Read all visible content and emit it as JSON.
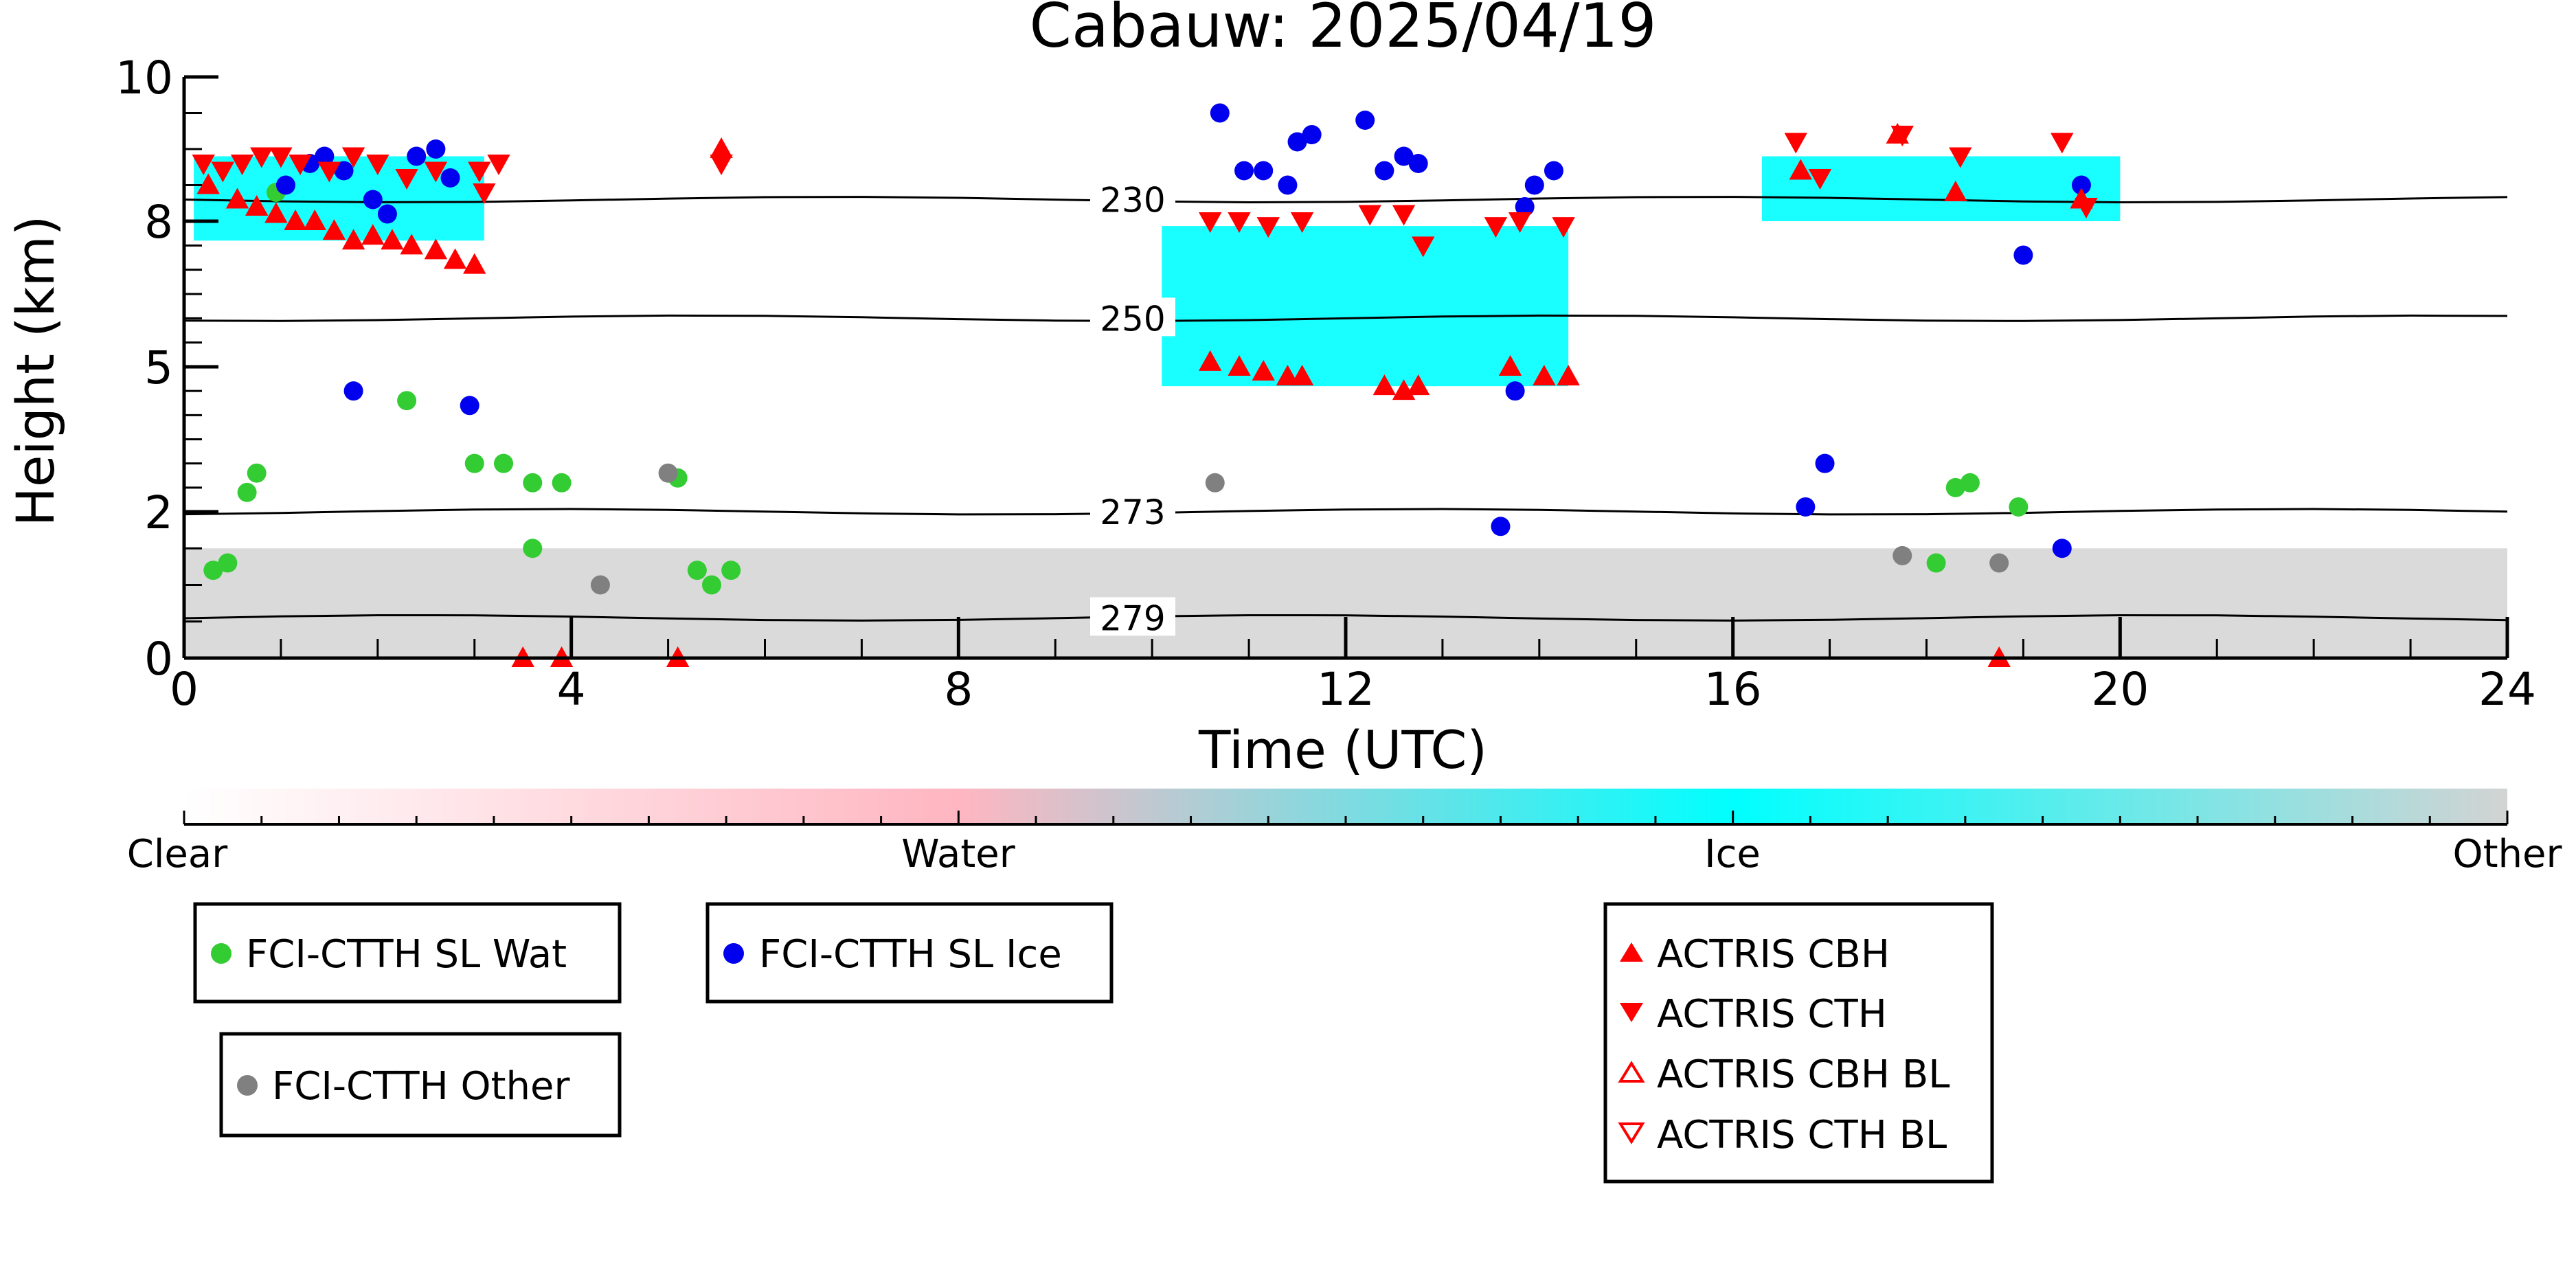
{
  "chart_data": {
    "type": "scatter",
    "title": "Cabauw: 2025/04/19",
    "xlabel": "Time (UTC)",
    "ylabel": "Height (km)",
    "xlim": [
      0,
      24
    ],
    "ylim": [
      0,
      10
    ],
    "x_ticks": [
      0,
      4,
      8,
      12,
      16,
      20,
      24
    ],
    "y_ticks": [
      0,
      2,
      5,
      8,
      10
    ],
    "y_tick_labels": [
      "0",
      "2",
      "5",
      "8",
      "10"
    ],
    "y_scale_note": "nonlinear height axis (0,2,5,8,10 labeled)",
    "colorbar": {
      "labels": [
        "Clear",
        "Water",
        "Ice",
        "Other"
      ],
      "colors": [
        "#ffffff",
        "#ffb6c1",
        "#00ffff",
        "#d3d3d3"
      ]
    },
    "contours": [
      {
        "label": "230",
        "y_km": 8.3
      },
      {
        "label": "250",
        "y_km": 6.0
      },
      {
        "label": "273",
        "y_km": 2.0
      },
      {
        "label": "279",
        "y_km": 0.55
      }
    ],
    "cloud_regions": [
      {
        "class": "Ice",
        "x": [
          0.1,
          3.1
        ],
        "y": [
          7.6,
          8.9
        ]
      },
      {
        "class": "Ice",
        "x": [
          10.1,
          14.3
        ],
        "y": [
          4.6,
          7.9
        ]
      },
      {
        "class": "Ice",
        "x": [
          16.3,
          20.0
        ],
        "y": [
          8.0,
          8.9
        ]
      },
      {
        "class": "Other",
        "x": [
          0.0,
          24.0
        ],
        "y": [
          0.0,
          1.5
        ]
      }
    ],
    "series": [
      {
        "name": "FCI-CTTH SL Wat",
        "color": "#33cc33",
        "marker": "circle",
        "points": [
          [
            0.3,
            1.2
          ],
          [
            0.45,
            1.3
          ],
          [
            0.65,
            2.4
          ],
          [
            0.75,
            2.8
          ],
          [
            0.95,
            8.4
          ],
          [
            2.3,
            4.3
          ],
          [
            3.0,
            3.0
          ],
          [
            3.3,
            3.0
          ],
          [
            3.6,
            2.6
          ],
          [
            3.9,
            2.6
          ],
          [
            5.1,
            2.7
          ],
          [
            5.3,
            1.2
          ],
          [
            5.45,
            1.0
          ],
          [
            5.65,
            1.2
          ],
          [
            18.1,
            1.3
          ],
          [
            18.3,
            2.5
          ],
          [
            18.45,
            2.6
          ],
          [
            18.95,
            2.1
          ],
          [
            3.6,
            1.5
          ]
        ]
      },
      {
        "name": "FCI-CTTH SL Ice",
        "color": "#0000ee",
        "marker": "circle",
        "points": [
          [
            1.05,
            8.5
          ],
          [
            1.3,
            8.8
          ],
          [
            1.45,
            8.9
          ],
          [
            1.65,
            8.7
          ],
          [
            1.95,
            8.3
          ],
          [
            2.1,
            8.1
          ],
          [
            2.4,
            8.9
          ],
          [
            2.6,
            9.0
          ],
          [
            2.75,
            8.6
          ],
          [
            1.75,
            4.5
          ],
          [
            2.95,
            4.2
          ],
          [
            10.7,
            9.5
          ],
          [
            10.95,
            8.7
          ],
          [
            11.15,
            8.7
          ],
          [
            11.4,
            8.5
          ],
          [
            11.5,
            9.1
          ],
          [
            11.65,
            9.2
          ],
          [
            12.2,
            9.4
          ],
          [
            12.4,
            8.7
          ],
          [
            12.6,
            8.9
          ],
          [
            12.75,
            8.8
          ],
          [
            13.85,
            8.2
          ],
          [
            13.95,
            8.5
          ],
          [
            14.15,
            8.7
          ],
          [
            13.75,
            4.5
          ],
          [
            13.6,
            1.8
          ],
          [
            16.75,
            2.1
          ],
          [
            16.95,
            3.0
          ],
          [
            19.0,
            7.3
          ],
          [
            19.6,
            8.5
          ],
          [
            19.4,
            1.5
          ]
        ]
      },
      {
        "name": "FCI-CTTH Other",
        "color": "#808080",
        "marker": "circle",
        "points": [
          [
            4.3,
            1.0
          ],
          [
            5.0,
            2.8
          ],
          [
            10.65,
            2.6
          ],
          [
            17.75,
            1.4
          ],
          [
            18.75,
            1.3
          ]
        ]
      },
      {
        "name": "ACTRIS CBH",
        "color": "#ff0000",
        "marker": "triangle-up",
        "points": [
          [
            0.25,
            8.5
          ],
          [
            0.55,
            8.3
          ],
          [
            0.75,
            8.2
          ],
          [
            0.95,
            8.1
          ],
          [
            1.15,
            8.0
          ],
          [
            1.35,
            8.0
          ],
          [
            1.55,
            7.8
          ],
          [
            1.75,
            7.6
          ],
          [
            1.95,
            7.7
          ],
          [
            2.15,
            7.6
          ],
          [
            2.35,
            7.5
          ],
          [
            2.6,
            7.4
          ],
          [
            2.8,
            7.2
          ],
          [
            3.0,
            7.1
          ],
          [
            5.55,
            9.0
          ],
          [
            10.6,
            5.1
          ],
          [
            10.9,
            5.0
          ],
          [
            11.15,
            4.9
          ],
          [
            11.4,
            4.8
          ],
          [
            11.55,
            4.8
          ],
          [
            12.4,
            4.6
          ],
          [
            12.6,
            4.5
          ],
          [
            12.75,
            4.6
          ],
          [
            13.7,
            5.0
          ],
          [
            14.05,
            4.8
          ],
          [
            14.3,
            4.8
          ],
          [
            16.7,
            8.7
          ],
          [
            17.7,
            9.2
          ],
          [
            18.3,
            8.4
          ],
          [
            19.6,
            8.3
          ],
          [
            3.5,
            0.0
          ],
          [
            3.9,
            0.0
          ],
          [
            5.1,
            0.0
          ],
          [
            18.75,
            0.0
          ]
        ]
      },
      {
        "name": "ACTRIS CTH",
        "color": "#ff0000",
        "marker": "triangle-down",
        "points": [
          [
            0.2,
            8.8
          ],
          [
            0.4,
            8.7
          ],
          [
            0.6,
            8.8
          ],
          [
            0.8,
            8.9
          ],
          [
            1.0,
            8.9
          ],
          [
            1.2,
            8.8
          ],
          [
            1.5,
            8.7
          ],
          [
            1.75,
            8.9
          ],
          [
            2.0,
            8.8
          ],
          [
            2.3,
            8.6
          ],
          [
            2.6,
            8.7
          ],
          [
            3.05,
            8.7
          ],
          [
            3.25,
            8.8
          ],
          [
            3.1,
            8.4
          ],
          [
            5.55,
            8.8
          ],
          [
            10.6,
            8.0
          ],
          [
            10.9,
            8.0
          ],
          [
            11.2,
            7.9
          ],
          [
            11.55,
            8.0
          ],
          [
            12.25,
            8.1
          ],
          [
            12.6,
            8.1
          ],
          [
            12.8,
            7.5
          ],
          [
            13.55,
            7.9
          ],
          [
            13.8,
            8.0
          ],
          [
            14.25,
            7.9
          ],
          [
            16.65,
            9.1
          ],
          [
            16.9,
            8.6
          ],
          [
            17.75,
            9.2
          ],
          [
            18.35,
            8.9
          ],
          [
            19.4,
            9.1
          ],
          [
            19.65,
            8.2
          ]
        ]
      },
      {
        "name": "ACTRIS CBH BL",
        "color": "#ff0000",
        "marker": "triangle-up-open",
        "points": []
      },
      {
        "name": "ACTRIS CTH BL",
        "color": "#ff0000",
        "marker": "triangle-down-open",
        "points": []
      }
    ],
    "legend_placement": "bottom"
  }
}
